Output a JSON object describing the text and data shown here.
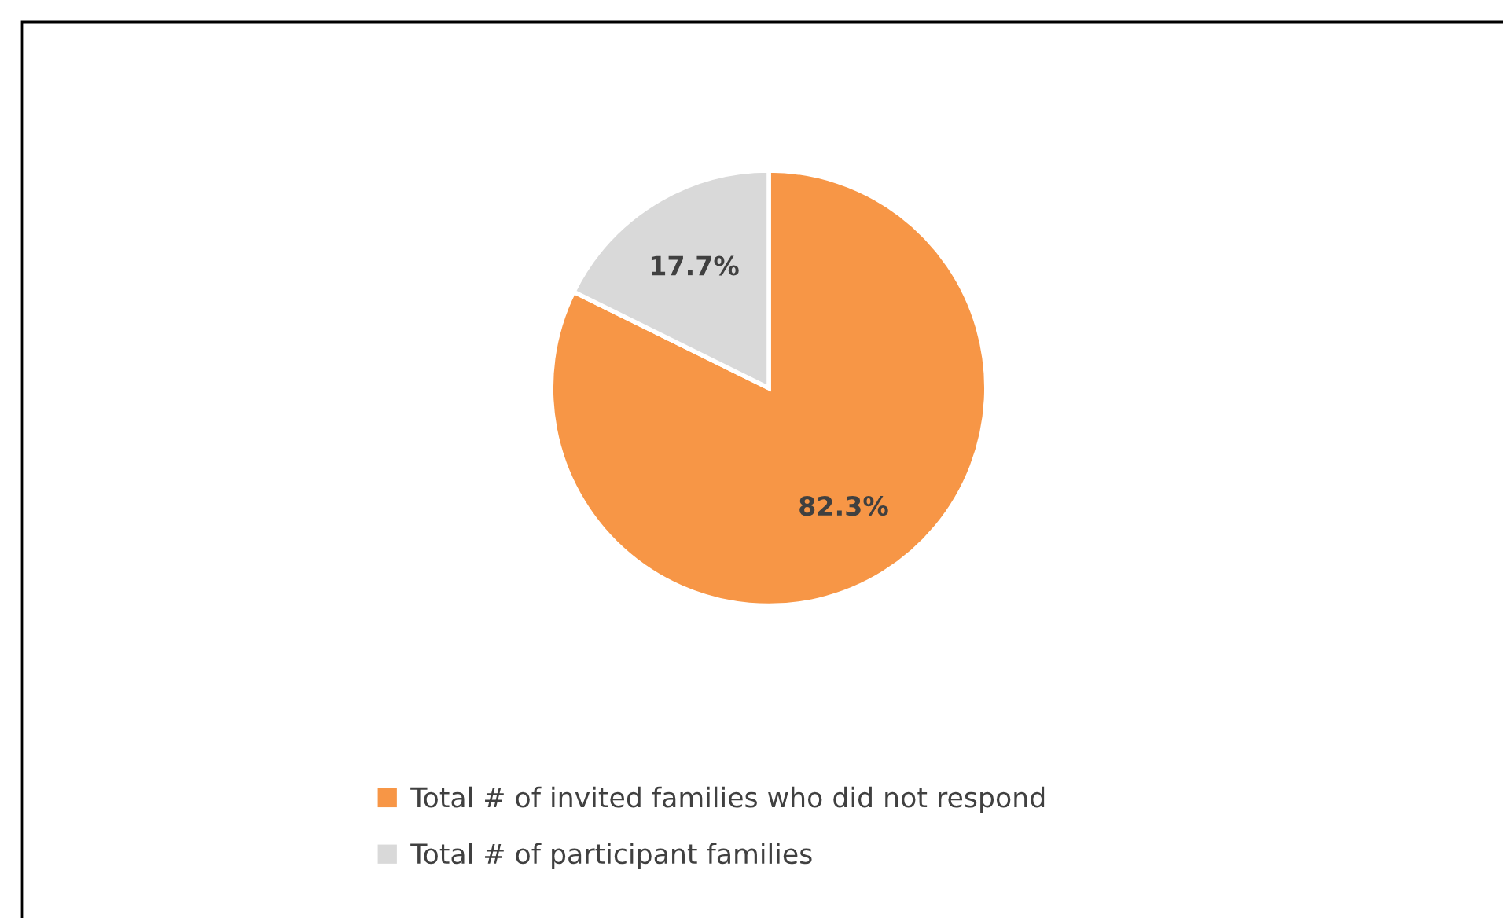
{
  "chart_data": {
    "type": "pie",
    "categories": [
      "Total # of invited families who did not respond",
      "Total # of participant families"
    ],
    "values": [
      82.3,
      17.7
    ],
    "value_labels": [
      "82.3%",
      "17.7%"
    ],
    "colors": [
      "#f79646",
      "#d9d9d9"
    ],
    "legend": "bottom"
  }
}
